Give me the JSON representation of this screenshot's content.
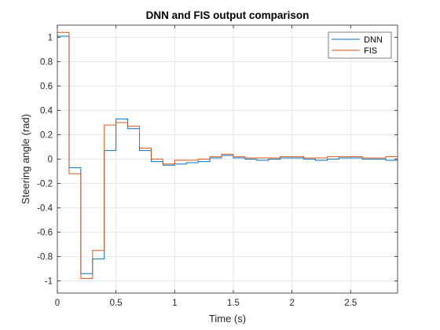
{
  "chart_data": {
    "type": "line",
    "step": true,
    "title": "DNN and FIS output comparison",
    "xlabel": "Time (s)",
    "ylabel": "Steering angle (rad)",
    "xlim": [
      0,
      2.9
    ],
    "ylim": [
      -1.1,
      1.1
    ],
    "xticks": [
      0,
      0.5,
      1,
      1.5,
      2,
      2.5
    ],
    "xtick_labels": [
      "0",
      "0.5",
      "1",
      "1.5",
      "2",
      "2.5"
    ],
    "yticks": [
      -1,
      -0.8,
      -0.6,
      -0.4,
      -0.2,
      0,
      0.2,
      0.4,
      0.6,
      0.8,
      1
    ],
    "ytick_labels": [
      "-1",
      "-0.8",
      "-0.6",
      "-0.4",
      "-0.2",
      "0",
      "0.2",
      "0.4",
      "0.6",
      "0.8",
      "1"
    ],
    "grid": true,
    "legend_position": "top-right",
    "x": [
      0,
      0.1,
      0.2,
      0.3,
      0.4,
      0.5,
      0.6,
      0.7,
      0.8,
      0.9,
      1.0,
      1.1,
      1.2,
      1.3,
      1.4,
      1.5,
      1.6,
      1.7,
      1.8,
      1.9,
      2.0,
      2.1,
      2.2,
      2.3,
      2.4,
      2.5,
      2.6,
      2.7,
      2.8,
      2.9
    ],
    "series": [
      {
        "name": "DNN",
        "color": "#0072BD",
        "values": [
          1.01,
          -0.07,
          -0.94,
          -0.82,
          0.07,
          0.33,
          0.25,
          0.07,
          -0.02,
          -0.05,
          -0.04,
          -0.03,
          -0.02,
          0.01,
          0.03,
          0.01,
          0.0,
          -0.01,
          0.0,
          0.01,
          0.01,
          0.0,
          -0.01,
          0.0,
          0.01,
          0.01,
          0.0,
          0.0,
          -0.01,
          -0.01
        ]
      },
      {
        "name": "FIS",
        "color": "#D95319",
        "values": [
          1.04,
          -0.12,
          -0.98,
          -0.75,
          0.28,
          0.3,
          0.27,
          0.09,
          0.0,
          -0.04,
          -0.01,
          -0.01,
          0.0,
          0.02,
          0.04,
          0.02,
          0.01,
          0.01,
          0.01,
          0.02,
          0.02,
          0.01,
          0.01,
          0.02,
          0.02,
          0.02,
          0.01,
          0.01,
          0.02,
          0.02
        ]
      }
    ]
  }
}
